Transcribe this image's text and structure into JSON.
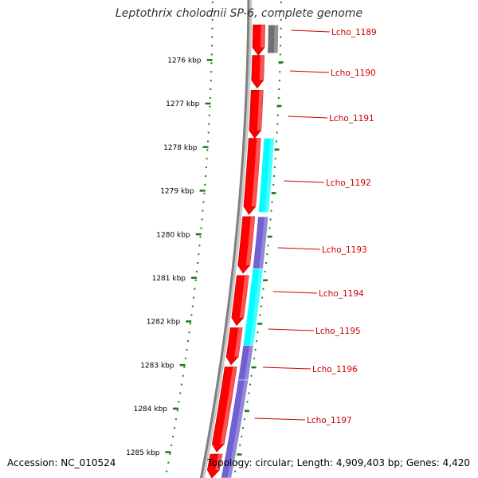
{
  "title": "Leptothrix cholodnii SP-6, complete genome",
  "accession_text": "Accession: NC_010524",
  "topology_text": "Topology: circular; Length: 4,909,403 bp; Genes: 4,420",
  "colors": {
    "backbone": "#808080",
    "forward_strand": "#ff0000",
    "reverse_strand_a": "#7060d0",
    "reverse_strand_b": "#00ffff",
    "pseudo": "#707070",
    "ticks": "#1a7a1a",
    "label_line": "#cc0000"
  },
  "axis_labels": [
    "1276 kbp",
    "1277 kbp",
    "1278 kbp",
    "1279 kbp",
    "1280 kbp",
    "1281 kbp",
    "1282 kbp",
    "1283 kbp",
    "1284 kbp",
    "1285 kbp"
  ],
  "gene_labels": [
    "Lcho_1189",
    "Lcho_1190",
    "Lcho_1191",
    "Lcho_1192",
    "Lcho_1193",
    "Lcho_1194",
    "Lcho_1195",
    "Lcho_1196",
    "Lcho_1197"
  ],
  "forward_genes": [
    {
      "start": 1275.2,
      "end": 1275.9
    },
    {
      "start": 1275.9,
      "end": 1276.65
    },
    {
      "start": 1276.7,
      "end": 1277.8
    },
    {
      "start": 1277.8,
      "end": 1279.55
    },
    {
      "start": 1279.6,
      "end": 1280.9
    },
    {
      "start": 1280.95,
      "end": 1282.1
    },
    {
      "start": 1282.15,
      "end": 1283.0
    },
    {
      "start": 1283.05,
      "end": 1285.0
    },
    {
      "start": 1285.05,
      "end": 1285.6
    }
  ],
  "reverse_genes": [
    {
      "start": 1275.2,
      "end": 1275.85,
      "color": "#707070"
    },
    {
      "start": 1277.8,
      "end": 1279.5,
      "color": "#00ffff"
    },
    {
      "start": 1279.6,
      "end": 1280.8,
      "color": "#7060d0"
    },
    {
      "start": 1280.8,
      "end": 1282.55,
      "color": "#00ffff"
    },
    {
      "start": 1282.55,
      "end": 1283.35,
      "color": "#7060d0"
    },
    {
      "start": 1283.35,
      "end": 1285.6,
      "color": "#7060d0"
    }
  ]
}
